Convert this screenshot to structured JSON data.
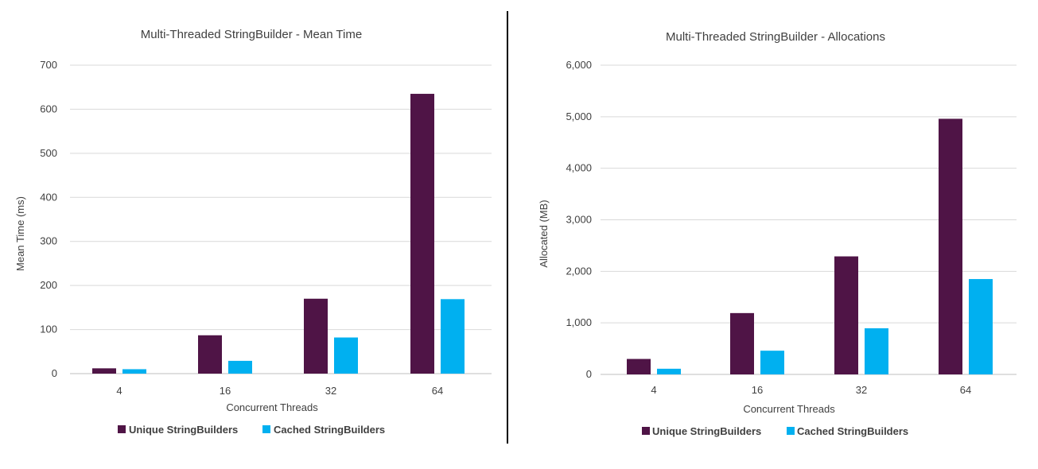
{
  "chart_data": [
    {
      "type": "bar",
      "title": "Multi-Threaded StringBuilder - Mean Time",
      "xlabel": "Concurrent Threads",
      "ylabel": "Mean Time (ms)",
      "ylim": [
        0,
        700
      ],
      "yticks": [
        0,
        100,
        200,
        300,
        400,
        500,
        600,
        700
      ],
      "ytick_labels": [
        "0",
        "100",
        "200",
        "300",
        "400",
        "500",
        "600",
        "700"
      ],
      "categories": [
        "4",
        "16",
        "32",
        "64"
      ],
      "series": [
        {
          "name": "Unique StringBuilders",
          "color": "#4f1446",
          "values": [
            12,
            87,
            170,
            635
          ]
        },
        {
          "name": "Cached StringBuilders",
          "color": "#00b0f0",
          "values": [
            10,
            29,
            82,
            169
          ]
        }
      ],
      "grid": true,
      "legend": "bottom"
    },
    {
      "type": "bar",
      "title": "Multi-Threaded StringBuilder - Allocations",
      "xlabel": "Concurrent Threads",
      "ylabel": "Allocated (MB)",
      "ylim": [
        0,
        6000
      ],
      "yticks": [
        0,
        1000,
        2000,
        3000,
        4000,
        5000,
        6000
      ],
      "ytick_labels": [
        "0",
        "1,000",
        "2,000",
        "3,000",
        "4,000",
        "5,000",
        "6,000"
      ],
      "categories": [
        "4",
        "16",
        "32",
        "64"
      ],
      "series": [
        {
          "name": "Unique StringBuilders",
          "color": "#4f1446",
          "values": [
            300,
            1190,
            2290,
            4960
          ]
        },
        {
          "name": "Cached StringBuilders",
          "color": "#00b0f0",
          "values": [
            110,
            460,
            895,
            1850
          ]
        }
      ],
      "grid": true,
      "legend": "bottom"
    }
  ]
}
